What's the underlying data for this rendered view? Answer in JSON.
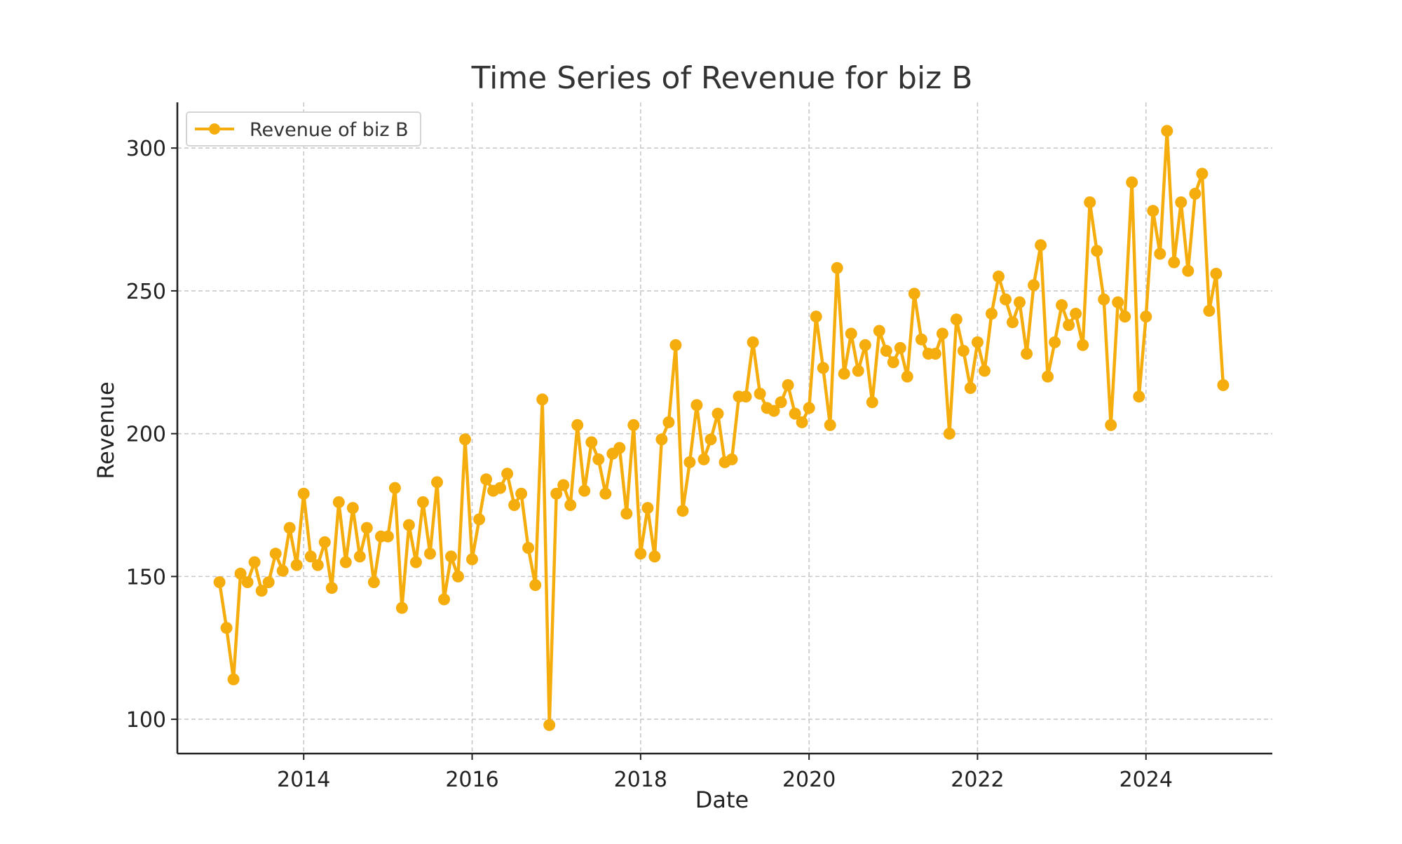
{
  "colors": {
    "series": "#f5ad0e",
    "background": "#ffffff"
  },
  "chart_data": {
    "type": "line",
    "title": "Time Series of Revenue for biz B",
    "xlabel": "Date",
    "ylabel": "Revenue",
    "x_axis": "date",
    "x_start": "2013-01",
    "x_frequency": "monthly",
    "xlim": [
      "2012-07",
      "2025-07"
    ],
    "ylim": [
      88,
      316
    ],
    "x_ticks": [
      "2014",
      "2016",
      "2018",
      "2020",
      "2022",
      "2024"
    ],
    "y_ticks": [
      100,
      150,
      200,
      250,
      300
    ],
    "grid": true,
    "legend_position": "top-left",
    "series": [
      {
        "name": "Revenue of biz B",
        "marker": "circle",
        "x": [
          "2013-01",
          "2013-02",
          "2013-03",
          "2013-04",
          "2013-05",
          "2013-06",
          "2013-07",
          "2013-08",
          "2013-09",
          "2013-10",
          "2013-11",
          "2013-12",
          "2014-01",
          "2014-02",
          "2014-03",
          "2014-04",
          "2014-05",
          "2014-06",
          "2014-07",
          "2014-08",
          "2014-09",
          "2014-10",
          "2014-11",
          "2014-12",
          "2015-01",
          "2015-02",
          "2015-03",
          "2015-04",
          "2015-05",
          "2015-06",
          "2015-07",
          "2015-08",
          "2015-09",
          "2015-10",
          "2015-11",
          "2015-12",
          "2016-01",
          "2016-02",
          "2016-03",
          "2016-04",
          "2016-05",
          "2016-06",
          "2016-07",
          "2016-08",
          "2016-09",
          "2016-10",
          "2016-11",
          "2016-12",
          "2017-01",
          "2017-02",
          "2017-03",
          "2017-04",
          "2017-05",
          "2017-06",
          "2017-07",
          "2017-08",
          "2017-09",
          "2017-10",
          "2017-11",
          "2017-12",
          "2018-01",
          "2018-02",
          "2018-03",
          "2018-04",
          "2018-05",
          "2018-06",
          "2018-07",
          "2018-08",
          "2018-09",
          "2018-10",
          "2018-11",
          "2018-12",
          "2019-01",
          "2019-02",
          "2019-03",
          "2019-04",
          "2019-05",
          "2019-06",
          "2019-07",
          "2019-08",
          "2019-09",
          "2019-10",
          "2019-11",
          "2019-12",
          "2020-01",
          "2020-02",
          "2020-03",
          "2020-04",
          "2020-05",
          "2020-06",
          "2020-07",
          "2020-08",
          "2020-09",
          "2020-10",
          "2020-11",
          "2020-12",
          "2021-01",
          "2021-02",
          "2021-03",
          "2021-04",
          "2021-05",
          "2021-06",
          "2021-07",
          "2021-08",
          "2021-09",
          "2021-10",
          "2021-11",
          "2021-12",
          "2022-01",
          "2022-02",
          "2022-03",
          "2022-04",
          "2022-05",
          "2022-06",
          "2022-07",
          "2022-08",
          "2022-09",
          "2022-10",
          "2022-11",
          "2022-12",
          "2023-01",
          "2023-02",
          "2023-03",
          "2023-04",
          "2023-05",
          "2023-06",
          "2023-07",
          "2023-08",
          "2023-09",
          "2023-10",
          "2023-11",
          "2023-12",
          "2024-01",
          "2024-02",
          "2024-03",
          "2024-04",
          "2024-05",
          "2024-06",
          "2024-07",
          "2024-08",
          "2024-09",
          "2024-10",
          "2024-11",
          "2024-12"
        ],
        "values": [
          148,
          132,
          114,
          151,
          148,
          155,
          145,
          148,
          158,
          152,
          167,
          154,
          179,
          157,
          154,
          162,
          146,
          176,
          155,
          174,
          157,
          167,
          148,
          164,
          164,
          181,
          139,
          168,
          155,
          176,
          158,
          183,
          142,
          157,
          150,
          198,
          156,
          170,
          184,
          180,
          181,
          186,
          175,
          179,
          160,
          147,
          212,
          98,
          179,
          182,
          175,
          203,
          180,
          197,
          191,
          179,
          193,
          195,
          172,
          203,
          158,
          174,
          157,
          198,
          204,
          231,
          173,
          190,
          210,
          191,
          198,
          207,
          190,
          191,
          213,
          213,
          232,
          214,
          209,
          208,
          211,
          217,
          207,
          204,
          209,
          241,
          223,
          203,
          258,
          221,
          235,
          222,
          231,
          211,
          236,
          229,
          225,
          230,
          220,
          249,
          233,
          228,
          228,
          235,
          200,
          240,
          229,
          216,
          232,
          222,
          242,
          255,
          247,
          239,
          246,
          228,
          252,
          266,
          220,
          232,
          245,
          238,
          242,
          231,
          281,
          264,
          247,
          203,
          246,
          241,
          288,
          213,
          241,
          278,
          263,
          306,
          260,
          281,
          257,
          284,
          291,
          243,
          256,
          217
        ]
      }
    ]
  }
}
